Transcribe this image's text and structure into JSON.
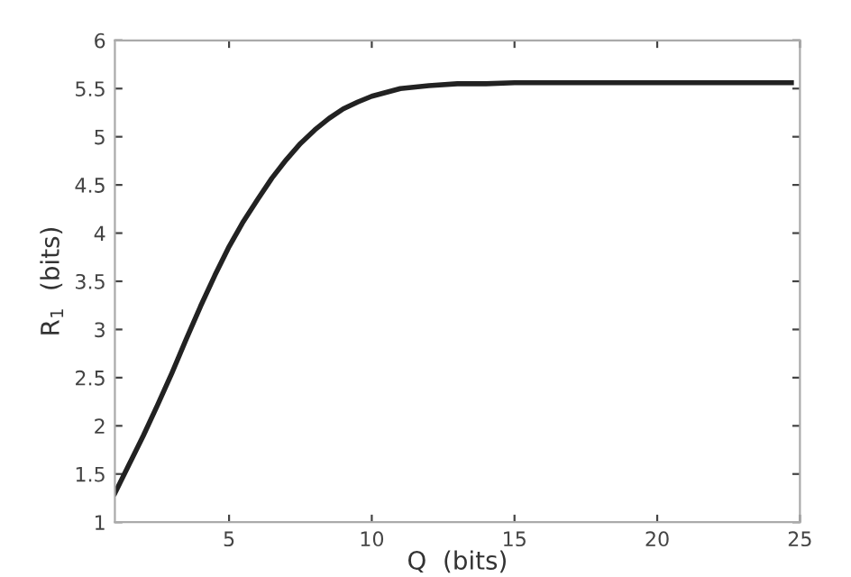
{
  "chart_data": {
    "type": "line",
    "xlabel": "Q  (bits)",
    "ylabel": "R$_{1}$  (bits)",
    "x": [
      1,
      1.5,
      2,
      2.5,
      3,
      3.5,
      4,
      4.5,
      5,
      5.5,
      6,
      6.5,
      7,
      7.5,
      8,
      8.5,
      9,
      9.5,
      10,
      11,
      12,
      13,
      14,
      15,
      17,
      19,
      21,
      23,
      24.7
    ],
    "series": [
      {
        "color": "#222222",
        "values": [
          1.3,
          1.6,
          1.9,
          2.22,
          2.55,
          2.9,
          3.24,
          3.56,
          3.86,
          4.12,
          4.35,
          4.57,
          4.76,
          4.93,
          5.07,
          5.19,
          5.29,
          5.36,
          5.42,
          5.5,
          5.53,
          5.55,
          5.55,
          5.56,
          5.56,
          5.56,
          5.56,
          5.56,
          5.56
        ]
      }
    ],
    "xlim": [
      1,
      25
    ],
    "xticks": [
      5,
      10,
      15,
      20,
      25
    ],
    "ylim": [
      1,
      6
    ],
    "yticks": [
      1,
      1.5,
      2,
      2.5,
      3,
      3.5,
      4,
      4.5,
      5,
      5.5,
      6
    ],
    "grid": false,
    "legend": false,
    "marker": "none",
    "line_style": "solid"
  }
}
